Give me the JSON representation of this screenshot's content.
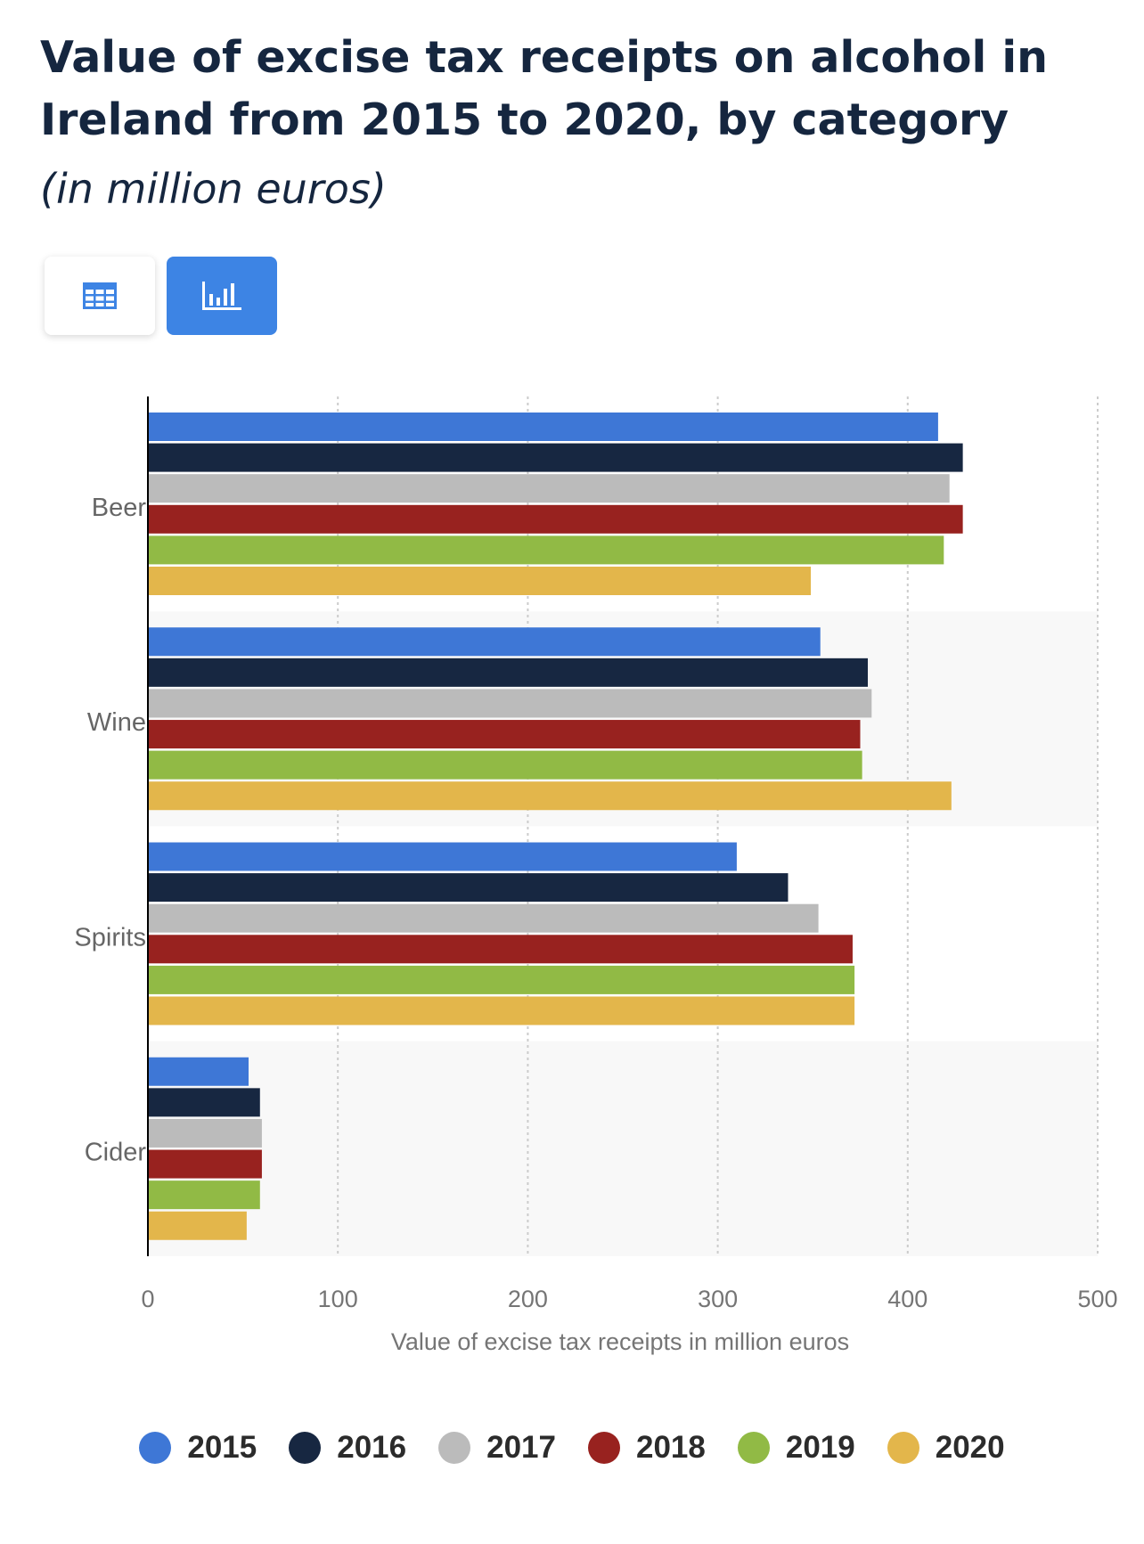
{
  "header": {
    "title": "Value of excise tax receipts on alcohol in Ireland from 2015 to 2020, by category",
    "subtitle": "(in million euros)"
  },
  "toggles": [
    {
      "icon": "table-icon",
      "active": false
    },
    {
      "icon": "bar-chart-icon",
      "active": true
    }
  ],
  "colors": {
    "accent": "#3d84e4",
    "series": [
      "#3e77d6",
      "#172741",
      "#bbbbbb",
      "#98221f",
      "#91ba45",
      "#e3b64b"
    ]
  },
  "chart_data": {
    "type": "bar",
    "orientation": "horizontal",
    "categories": [
      "Beer",
      "Wine",
      "Spirits",
      "Cider"
    ],
    "series": [
      {
        "name": "2015",
        "values": [
          416,
          354,
          310,
          53
        ]
      },
      {
        "name": "2016",
        "values": [
          429,
          379,
          337,
          59
        ]
      },
      {
        "name": "2017",
        "values": [
          422,
          381,
          353,
          60
        ]
      },
      {
        "name": "2018",
        "values": [
          429,
          375,
          371,
          60
        ]
      },
      {
        "name": "2019",
        "values": [
          419,
          376,
          372,
          59
        ]
      },
      {
        "name": "2020",
        "values": [
          349,
          423,
          372,
          52
        ]
      }
    ],
    "xlabel": "Value of excise tax receipts in million euros",
    "xlim": [
      0,
      500
    ],
    "xticks": [
      "0",
      "100",
      "200",
      "300",
      "400",
      "500"
    ],
    "grid": true,
    "legend_position": "bottom"
  }
}
